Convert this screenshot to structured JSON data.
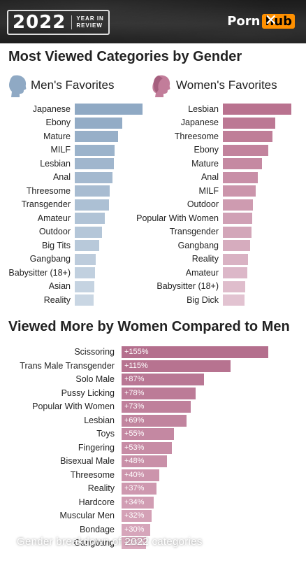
{
  "header": {
    "year": "2022",
    "year_in_review": [
      "YEAR IN",
      "REVIEW"
    ],
    "logo_text": "Porn",
    "logo_badge": "hub"
  },
  "section1_title": "Most Viewed Categories by Gender",
  "section2_title": "Viewed More by Women Compared to Men",
  "caption": "Gender breakdown of 2022 categories",
  "caption_sub": "Pornhub",
  "colors": {
    "men_bar": "#8fa9c4",
    "men_bar_light": "#c9d6e3",
    "women_bar": "#b9728f",
    "women_bar_light": "#e2c3d1",
    "diff_bar": "#b46f8d"
  },
  "chart_data": [
    {
      "type": "bar",
      "title": "Men's Favorites",
      "categories": [
        "Japanese",
        "Ebony",
        "Mature",
        "MILF",
        "Lesbian",
        "Anal",
        "Threesome",
        "Transgender",
        "Amateur",
        "Outdoor",
        "Big Tits",
        "Gangbang",
        "Babysitter (18+)",
        "Asian",
        "Reality"
      ],
      "values": [
        100,
        70,
        64,
        59,
        58,
        56,
        52,
        51,
        44,
        40,
        36,
        31,
        30,
        29,
        28
      ]
    },
    {
      "type": "bar",
      "title": "Women's Favorites",
      "categories": [
        "Lesbian",
        "Japanese",
        "Threesome",
        "Ebony",
        "Mature",
        "Anal",
        "MILF",
        "Outdoor",
        "Popular With Women",
        "Transgender",
        "Gangbang",
        "Reality",
        "Amateur",
        "Babysitter (18+)",
        "Big Dick"
      ],
      "values": [
        100,
        77,
        72,
        66,
        57,
        51,
        48,
        44,
        43,
        42,
        40,
        37,
        36,
        33,
        32
      ]
    },
    {
      "type": "bar",
      "title": "Viewed More by Women Compared to Men",
      "categories": [
        "Scissoring",
        "Trans Male Transgender",
        "Solo Male",
        "Pussy Licking",
        "Popular With Women",
        "Lesbian",
        "Toys",
        "Fingering",
        "Bisexual Male",
        "Threesome",
        "Reality",
        "Hardcore",
        "Muscular Men",
        "Bondage",
        "Gangbang"
      ],
      "values": [
        155,
        115,
        87,
        78,
        73,
        69,
        55,
        53,
        48,
        40,
        37,
        34,
        32,
        30,
        26
      ],
      "labels": [
        "+155%",
        "+115%",
        "+87%",
        "+78%",
        "+73%",
        "+69%",
        "+55%",
        "+53%",
        "+48%",
        "+40%",
        "+37%",
        "+34%",
        "+32%",
        "+30%",
        "+26%"
      ]
    }
  ]
}
